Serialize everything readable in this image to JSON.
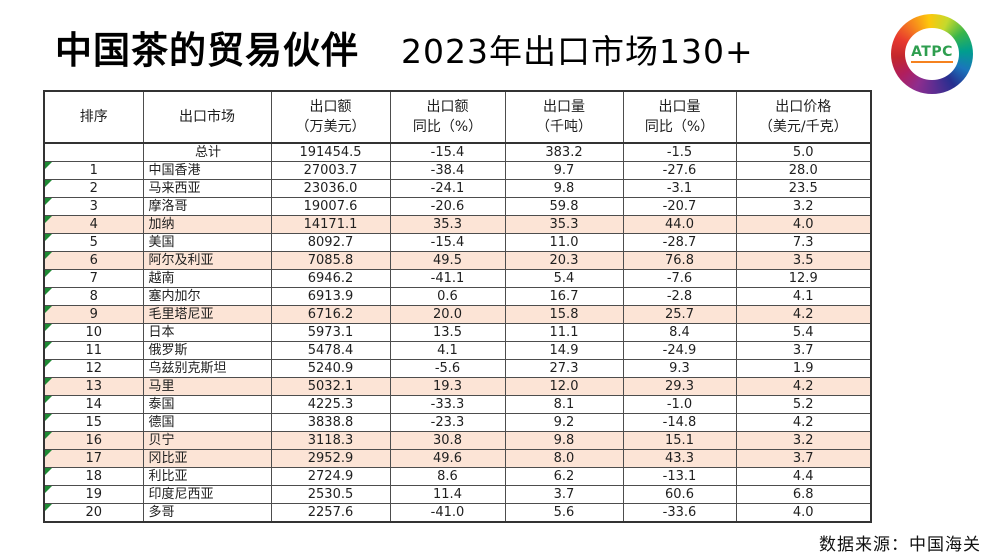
{
  "header": {
    "title": "中国茶的贸易伙伴",
    "subtitle": "2023年出口市场130+",
    "logo_text": "ATPC"
  },
  "footer": {
    "source": "数据来源：中国海关"
  },
  "colors": {
    "highlight_row": "#fce4d6",
    "error_triangle": "#1e8a34",
    "logo_green": "#2e9e4f"
  },
  "chart_data": {
    "type": "table",
    "title": "中国茶的贸易伙伴 2023年出口市场130+",
    "columns": [
      "排序",
      "出口市场",
      "出口额\n（万美元）",
      "出口额\n同比（%）",
      "出口量\n（千吨）",
      "出口量\n同比（%）",
      "出口价格\n（美元/千克）"
    ],
    "total_row": [
      "",
      "总计",
      "191454.5",
      "-15.4",
      "383.2",
      "-1.5",
      "5.0"
    ],
    "rows": [
      [
        "1",
        "中国香港",
        "27003.7",
        "-38.4",
        "9.7",
        "-27.6",
        "28.0"
      ],
      [
        "2",
        "马来西亚",
        "23036.0",
        "-24.1",
        "9.8",
        "-3.1",
        "23.5"
      ],
      [
        "3",
        "摩洛哥",
        "19007.6",
        "-20.6",
        "59.8",
        "-20.7",
        "3.2"
      ],
      [
        "4",
        "加纳",
        "14171.1",
        "35.3",
        "35.3",
        "44.0",
        "4.0"
      ],
      [
        "5",
        "美国",
        "8092.7",
        "-15.4",
        "11.0",
        "-28.7",
        "7.3"
      ],
      [
        "6",
        "阿尔及利亚",
        "7085.8",
        "49.5",
        "20.3",
        "76.8",
        "3.5"
      ],
      [
        "7",
        "越南",
        "6946.2",
        "-41.1",
        "5.4",
        "-7.6",
        "12.9"
      ],
      [
        "8",
        "塞内加尔",
        "6913.9",
        "0.6",
        "16.7",
        "-2.8",
        "4.1"
      ],
      [
        "9",
        "毛里塔尼亚",
        "6716.2",
        "20.0",
        "15.8",
        "25.7",
        "4.2"
      ],
      [
        "10",
        "日本",
        "5973.1",
        "13.5",
        "11.1",
        "8.4",
        "5.4"
      ],
      [
        "11",
        "俄罗斯",
        "5478.4",
        "4.1",
        "14.9",
        "-24.9",
        "3.7"
      ],
      [
        "12",
        "乌兹别克斯坦",
        "5240.9",
        "-5.6",
        "27.3",
        "9.3",
        "1.9"
      ],
      [
        "13",
        "马里",
        "5032.1",
        "19.3",
        "12.0",
        "29.3",
        "4.2"
      ],
      [
        "14",
        "泰国",
        "4225.3",
        "-33.3",
        "8.1",
        "-1.0",
        "5.2"
      ],
      [
        "15",
        "德国",
        "3838.8",
        "-23.3",
        "9.2",
        "-14.8",
        "4.2"
      ],
      [
        "16",
        "贝宁",
        "3118.3",
        "30.8",
        "9.8",
        "15.1",
        "3.2"
      ],
      [
        "17",
        "冈比亚",
        "2952.9",
        "49.6",
        "8.0",
        "43.3",
        "3.7"
      ],
      [
        "18",
        "利比亚",
        "2724.9",
        "8.6",
        "6.2",
        "-13.1",
        "4.4"
      ],
      [
        "19",
        "印度尼西亚",
        "2530.5",
        "11.4",
        "3.7",
        "60.6",
        "6.8"
      ],
      [
        "20",
        "多哥",
        "2257.6",
        "-41.0",
        "5.6",
        "-33.6",
        "4.0"
      ]
    ],
    "highlighted_ranks": [
      4,
      6,
      9,
      13,
      16,
      17
    ],
    "legend_position": "none",
    "grid": true
  }
}
